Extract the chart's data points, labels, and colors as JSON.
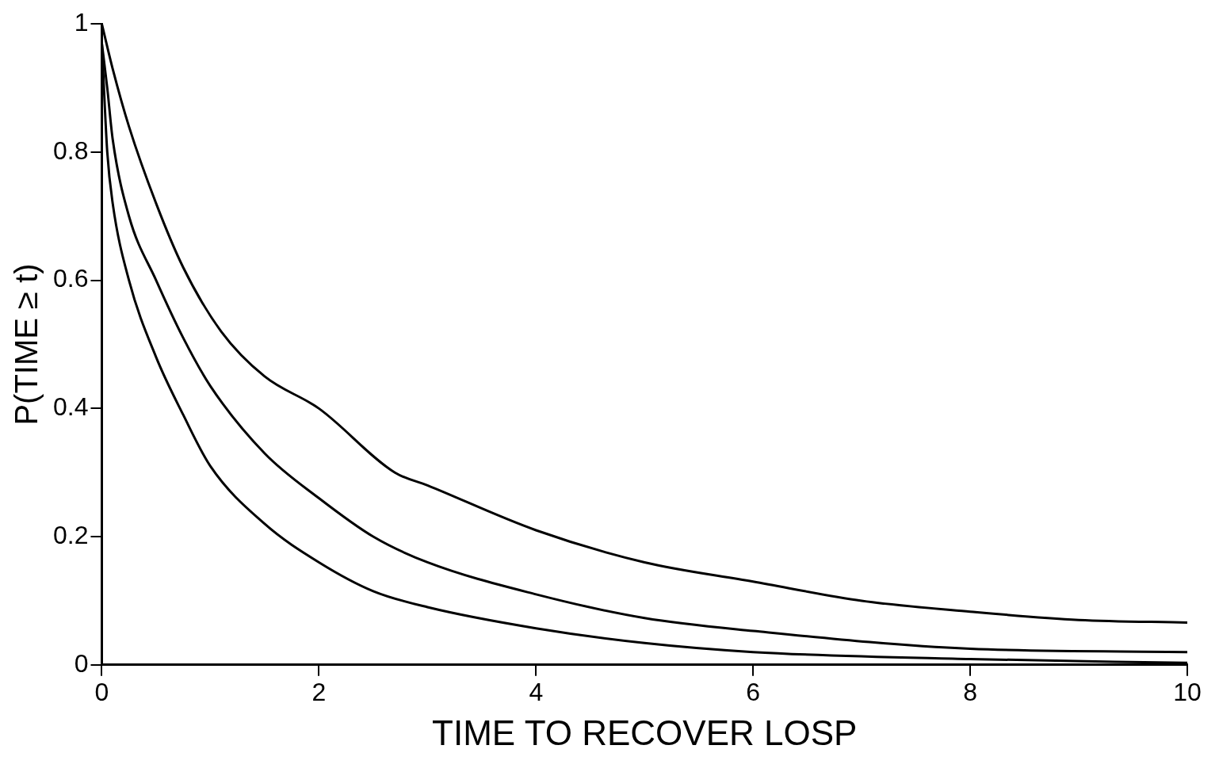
{
  "chart_data": {
    "type": "line",
    "xlabel": "TIME TO RECOVER LOSP",
    "ylabel": "P(TIME ≥ t)",
    "xlim": [
      0,
      10
    ],
    "ylim": [
      0,
      1
    ],
    "xticks": [
      0,
      2,
      4,
      6,
      8,
      10
    ],
    "yticks": [
      0,
      0.2,
      0.4,
      0.6,
      0.8,
      1
    ],
    "grid": false,
    "legend": false,
    "marker": "none",
    "line_style": "solid",
    "series": [
      {
        "color": "#000000",
        "x": [
          0,
          0.1,
          0.25,
          0.5,
          0.75,
          1.1,
          1.5,
          2,
          2.7,
          3,
          4,
          5,
          6,
          7,
          8,
          9,
          10
        ],
        "values": [
          1,
          0.93,
          0.84,
          0.72,
          0.62,
          0.52,
          0.45,
          0.4,
          0.3,
          0.28,
          0.21,
          0.16,
          0.13,
          0.1,
          0.083,
          0.07,
          0.066
        ]
      },
      {
        "color": "#000000",
        "x": [
          0,
          0.05,
          0.1,
          0.25,
          0.5,
          0.75,
          1,
          1.5,
          2,
          2.5,
          3,
          4,
          5,
          6,
          8,
          10
        ],
        "values": [
          0.97,
          0.9,
          0.82,
          0.7,
          0.6,
          0.51,
          0.435,
          0.33,
          0.26,
          0.2,
          0.16,
          0.11,
          0.073,
          0.053,
          0.025,
          0.02
        ]
      },
      {
        "color": "#000000",
        "x": [
          0,
          0.05,
          0.1,
          0.25,
          0.5,
          0.75,
          1,
          1.5,
          2,
          2.5,
          3,
          4,
          5,
          6,
          8,
          10
        ],
        "values": [
          0.97,
          0.8,
          0.72,
          0.6,
          0.48,
          0.39,
          0.31,
          0.22,
          0.16,
          0.115,
          0.09,
          0.057,
          0.034,
          0.02,
          0.009,
          0.003
        ]
      }
    ]
  }
}
